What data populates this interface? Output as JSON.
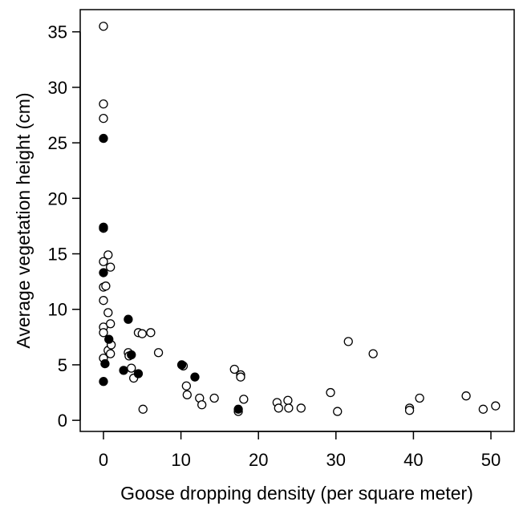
{
  "chart_data": {
    "type": "scatter",
    "title": "",
    "xlabel": "Goose dropping density (per square meter)",
    "ylabel": "Average vegetation height (cm)",
    "xlim": [
      -3,
      53
    ],
    "ylim": [
      -1,
      37
    ],
    "x_ticks": [
      0,
      10,
      20,
      30,
      40,
      50
    ],
    "y_ticks": [
      0,
      5,
      10,
      15,
      20,
      25,
      30,
      35
    ],
    "x_tick_labels": [
      "0",
      "10",
      "20",
      "30",
      "40",
      "50"
    ],
    "y_tick_labels": [
      "0",
      "5",
      "10",
      "15",
      "20",
      "25",
      "30",
      "35"
    ],
    "grid": false,
    "legend": "none",
    "series": [
      {
        "marker": "open-circle",
        "color": "#000000",
        "points": [
          [
            0.0,
            35.5
          ],
          [
            0.0,
            28.5
          ],
          [
            0.0,
            27.2
          ],
          [
            0.0,
            17.3
          ],
          [
            0.0,
            14.3
          ],
          [
            0.0,
            12.0
          ],
          [
            0.3,
            12.1
          ],
          [
            0.0,
            10.8
          ],
          [
            0.0,
            8.4
          ],
          [
            0.0,
            7.9
          ],
          [
            0.0,
            5.6
          ],
          [
            0.6,
            14.9
          ],
          [
            0.9,
            13.8
          ],
          [
            0.6,
            9.7
          ],
          [
            0.9,
            8.7
          ],
          [
            0.6,
            6.3
          ],
          [
            1.0,
            6.8
          ],
          [
            0.9,
            6.0
          ],
          [
            3.2,
            6.1
          ],
          [
            3.3,
            5.8
          ],
          [
            3.6,
            4.7
          ],
          [
            3.9,
            3.8
          ],
          [
            4.5,
            7.9
          ],
          [
            5.0,
            7.8
          ],
          [
            6.1,
            7.9
          ],
          [
            7.1,
            6.1
          ],
          [
            5.1,
            1.0
          ],
          [
            10.3,
            4.9
          ],
          [
            10.7,
            3.1
          ],
          [
            10.8,
            2.3
          ],
          [
            12.4,
            2.0
          ],
          [
            12.7,
            1.4
          ],
          [
            14.3,
            2.0
          ],
          [
            16.9,
            4.6
          ],
          [
            17.7,
            4.1
          ],
          [
            17.7,
            3.9
          ],
          [
            18.1,
            1.9
          ],
          [
            17.4,
            0.8
          ],
          [
            22.4,
            1.6
          ],
          [
            22.6,
            1.1
          ],
          [
            23.8,
            1.8
          ],
          [
            23.9,
            1.1
          ],
          [
            25.5,
            1.1
          ],
          [
            29.3,
            2.5
          ],
          [
            30.2,
            0.8
          ],
          [
            31.6,
            7.1
          ],
          [
            34.8,
            6.0
          ],
          [
            39.5,
            1.1
          ],
          [
            39.5,
            0.9
          ],
          [
            40.8,
            2.0
          ],
          [
            46.8,
            2.2
          ],
          [
            49.0,
            1.0
          ],
          [
            50.6,
            1.3
          ]
        ]
      },
      {
        "marker": "filled-circle",
        "color": "#000000",
        "points": [
          [
            0.0,
            25.4
          ],
          [
            0.0,
            17.4
          ],
          [
            0.0,
            13.3
          ],
          [
            0.2,
            5.1
          ],
          [
            0.0,
            3.5
          ],
          [
            0.7,
            7.3
          ],
          [
            3.2,
            9.1
          ],
          [
            3.6,
            5.9
          ],
          [
            2.6,
            4.5
          ],
          [
            4.5,
            4.2
          ],
          [
            10.1,
            5.0
          ],
          [
            11.8,
            3.9
          ],
          [
            17.4,
            1.0
          ]
        ]
      }
    ]
  }
}
